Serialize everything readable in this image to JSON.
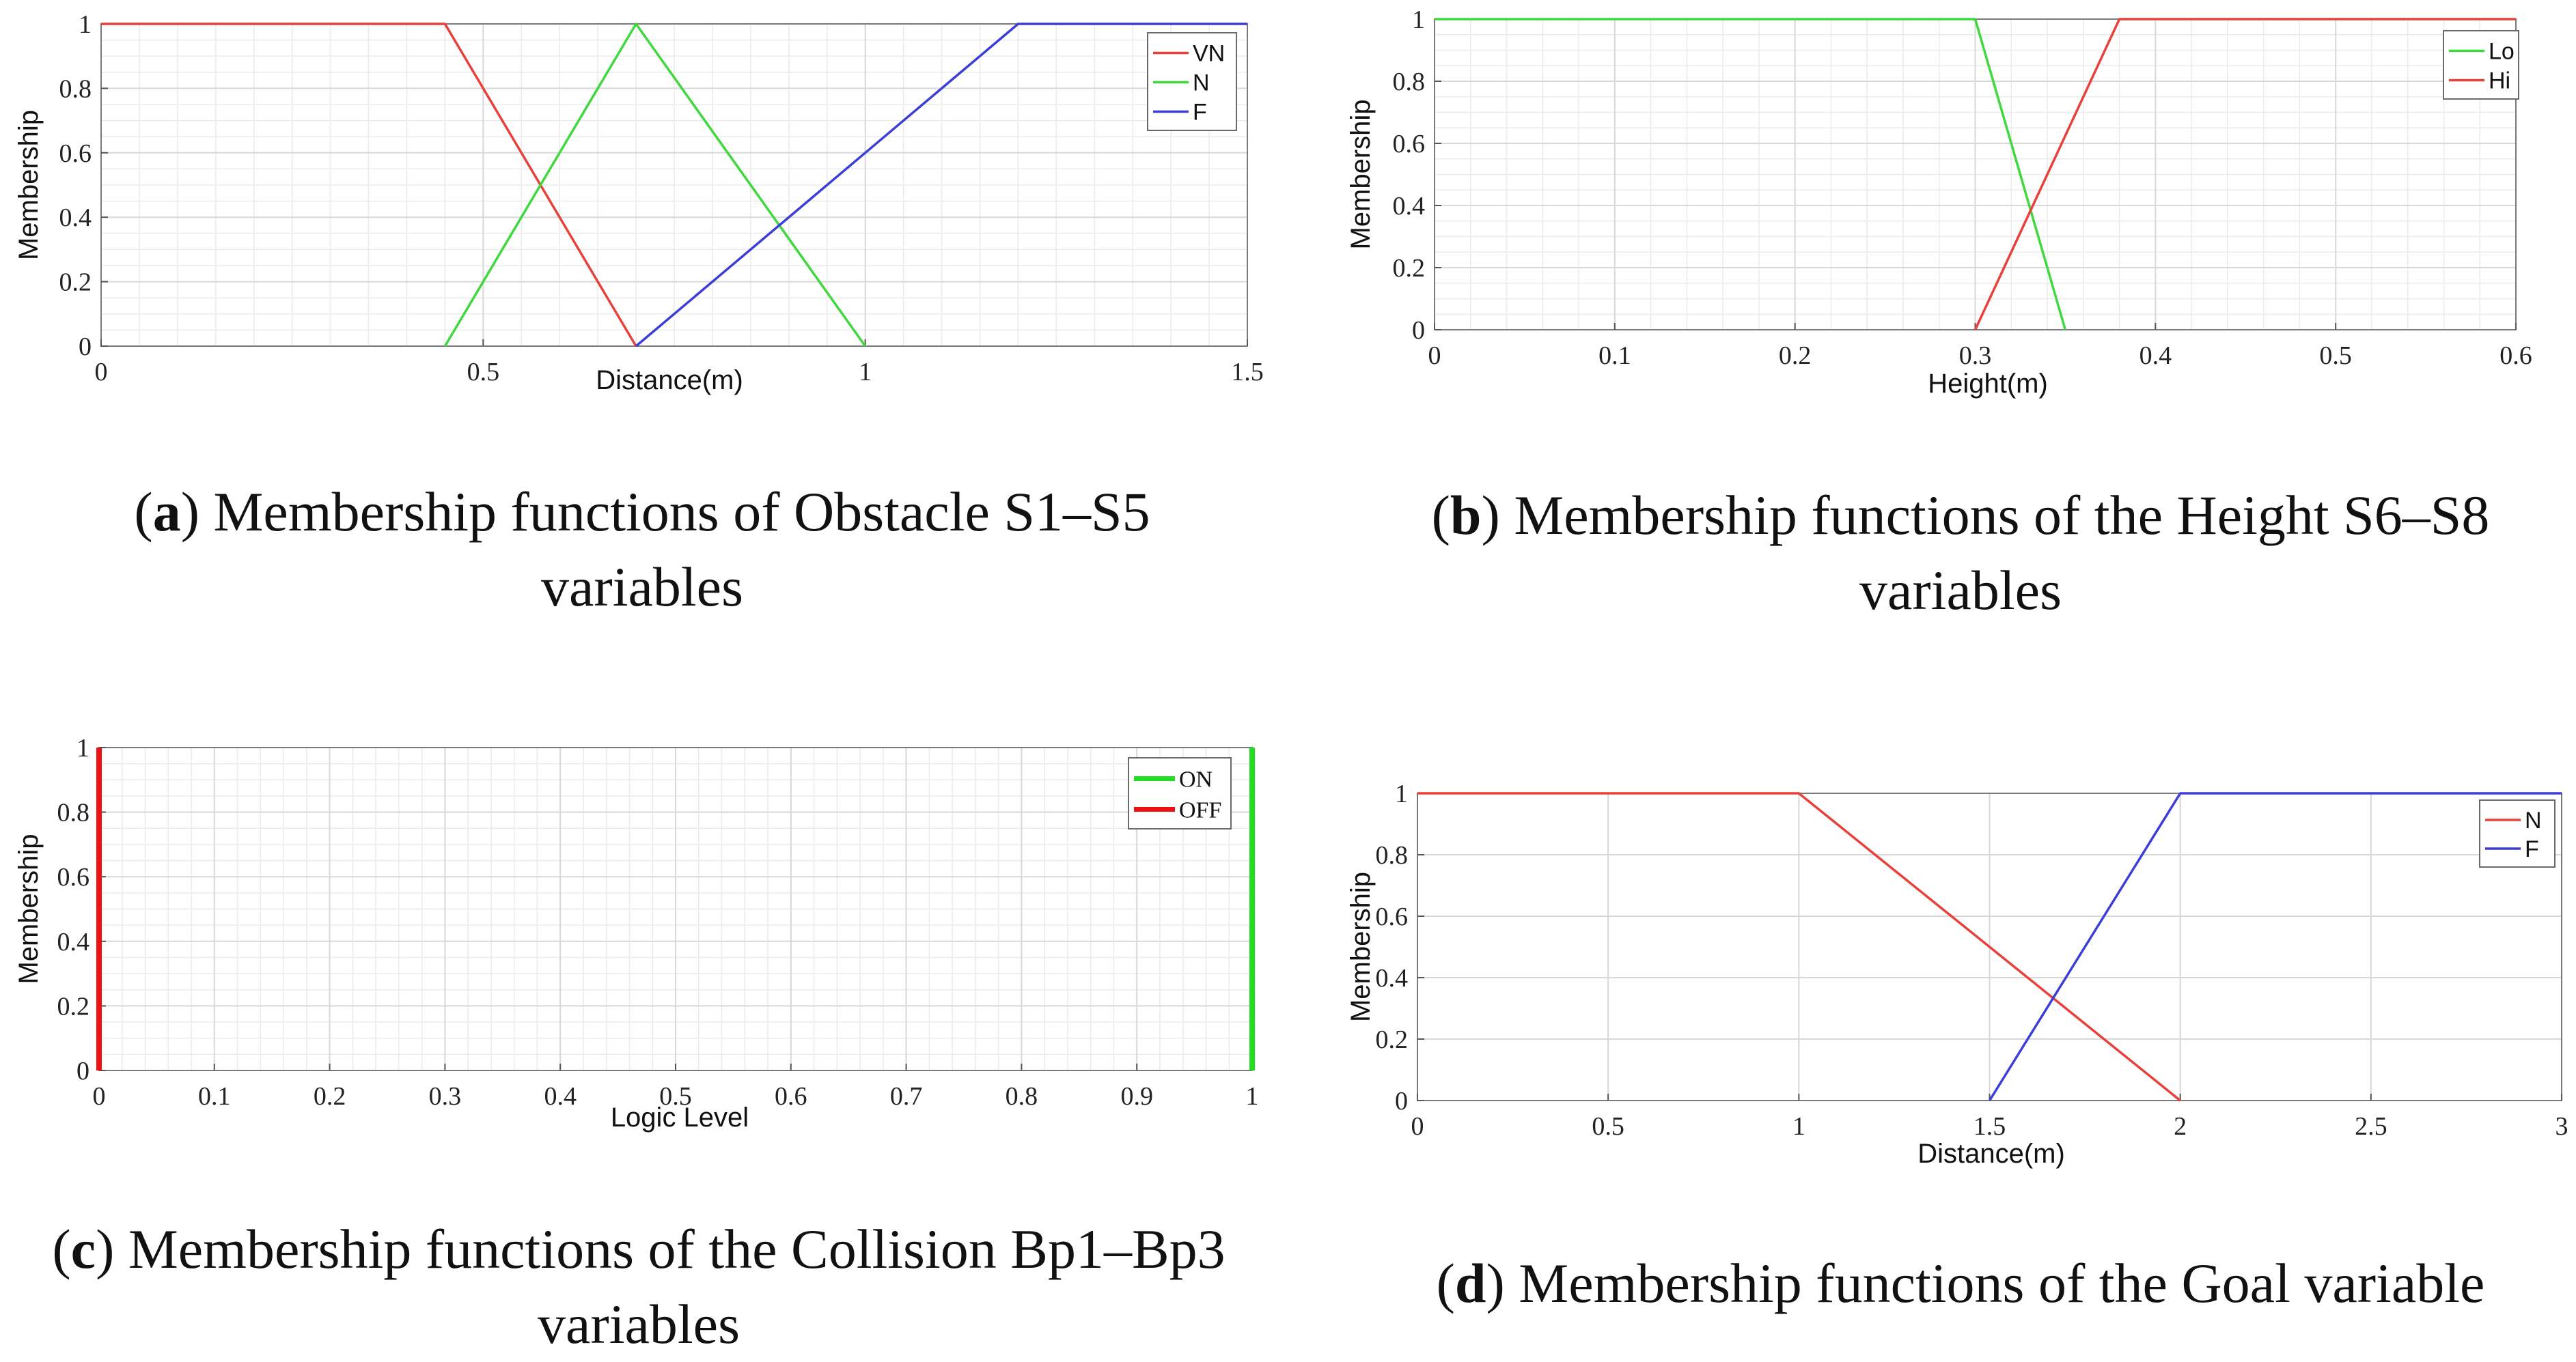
{
  "chart_data": [
    {
      "id": "a",
      "type": "line",
      "title": "Membership functions of Obstacle S1–S5 variables",
      "caption_letter": "a",
      "caption_text": ") Membership functions of Obstacle S1–S5 variables",
      "xlabel": "Distance(m)",
      "ylabel": "Membership",
      "xlim": [
        0,
        1.5
      ],
      "ylim": [
        0,
        1
      ],
      "xticks": [
        0,
        0.5,
        1,
        1.5
      ],
      "xtick_labels": [
        "0",
        "0.5",
        "1",
        "1.5"
      ],
      "yticks": [
        0,
        0.2,
        0.4,
        0.6,
        0.8,
        1
      ],
      "ytick_labels": [
        "0",
        "0.2",
        "0.4",
        "0.6",
        "0.8",
        "1"
      ],
      "grid": true,
      "legend": "top-right",
      "series": [
        {
          "name": "VN",
          "color": "#e8403a",
          "x": [
            0,
            0.45,
            0.7
          ],
          "y": [
            1,
            1,
            0
          ]
        },
        {
          "name": "N",
          "color": "#3fd83f",
          "x": [
            0.45,
            0.7,
            1.0
          ],
          "y": [
            0,
            1,
            0
          ]
        },
        {
          "name": "F",
          "color": "#3b3fd8",
          "x": [
            0.7,
            1.2,
            1.5
          ],
          "y": [
            0,
            1,
            1
          ]
        }
      ]
    },
    {
      "id": "b",
      "type": "line",
      "title": "Membership functions of the Height S6–S8 variables",
      "caption_letter": "b",
      "caption_text": ") Membership functions of the Height S6–S8 variables",
      "xlabel": "Height(m)",
      "ylabel": "Membership",
      "xlim": [
        0,
        0.6
      ],
      "ylim": [
        0,
        1
      ],
      "xticks": [
        0,
        0.1,
        0.2,
        0.3,
        0.4,
        0.5,
        0.6
      ],
      "xtick_labels": [
        "0",
        "0.1",
        "0.2",
        "0.3",
        "0.4",
        "0.5",
        "0.6"
      ],
      "yticks": [
        0,
        0.2,
        0.4,
        0.6,
        0.8,
        1
      ],
      "ytick_labels": [
        "0",
        "0.2",
        "0.4",
        "0.6",
        "0.8",
        "1"
      ],
      "grid": true,
      "legend": "top-right",
      "series": [
        {
          "name": "Lo",
          "color": "#3fd83f",
          "x": [
            0,
            0.3,
            0.35
          ],
          "y": [
            1,
            1,
            0
          ]
        },
        {
          "name": "Hi",
          "color": "#e8403a",
          "x": [
            0.3,
            0.38,
            0.6
          ],
          "y": [
            0,
            1,
            1
          ]
        }
      ]
    },
    {
      "id": "c",
      "type": "line",
      "title": "Membership functions of the Collision Bp1–Bp3 variables",
      "caption_letter": "c",
      "caption_text": ") Membership functions of the Collision Bp1–Bp3 variables",
      "xlabel": "Logic Level",
      "ylabel": "Membership",
      "xlim": [
        0,
        1
      ],
      "ylim": [
        0,
        1
      ],
      "xticks": [
        0,
        0.1,
        0.2,
        0.3,
        0.4,
        0.5,
        0.6,
        0.7,
        0.8,
        0.9,
        1
      ],
      "xtick_labels": [
        "0",
        "0.1",
        "0.2",
        "0.3",
        "0.4",
        "0.5",
        "0.6",
        "0.7",
        "0.8",
        "0.9",
        "1"
      ],
      "yticks": [
        0,
        0.2,
        0.4,
        0.6,
        0.8,
        1
      ],
      "ytick_labels": [
        "0",
        "0.2",
        "0.4",
        "0.6",
        "0.8",
        "1"
      ],
      "grid": true,
      "legend": "top-right",
      "series": [
        {
          "name": "ON",
          "color": "#22dd22",
          "x": [
            1,
            1
          ],
          "y": [
            0,
            1
          ]
        },
        {
          "name": "OFF",
          "color": "#ee1111",
          "x": [
            0,
            0
          ],
          "y": [
            0,
            1
          ]
        }
      ]
    },
    {
      "id": "d",
      "type": "line",
      "title": "Membership functions of the Goal variable",
      "caption_letter": "d",
      "caption_text": ") Membership functions of the Goal variable",
      "xlabel": "Distance(m)",
      "ylabel": "Membership",
      "xlim": [
        0,
        3
      ],
      "ylim": [
        0,
        1
      ],
      "xticks": [
        0,
        0.5,
        1,
        1.5,
        2,
        2.5,
        3
      ],
      "xtick_labels": [
        "0",
        "0.5",
        "1",
        "1.5",
        "2",
        "2.5",
        "3"
      ],
      "yticks": [
        0,
        0.2,
        0.4,
        0.6,
        0.8,
        1
      ],
      "ytick_labels": [
        "0",
        "0.2",
        "0.4",
        "0.6",
        "0.8",
        "1"
      ],
      "grid": true,
      "legend": "top-right",
      "series": [
        {
          "name": "N",
          "color": "#e8403a",
          "x": [
            0,
            1,
            2
          ],
          "y": [
            1,
            1,
            0
          ]
        },
        {
          "name": "F",
          "color": "#3b3fd8",
          "x": [
            1.5,
            2,
            3
          ],
          "y": [
            0,
            1,
            1
          ]
        }
      ]
    }
  ]
}
